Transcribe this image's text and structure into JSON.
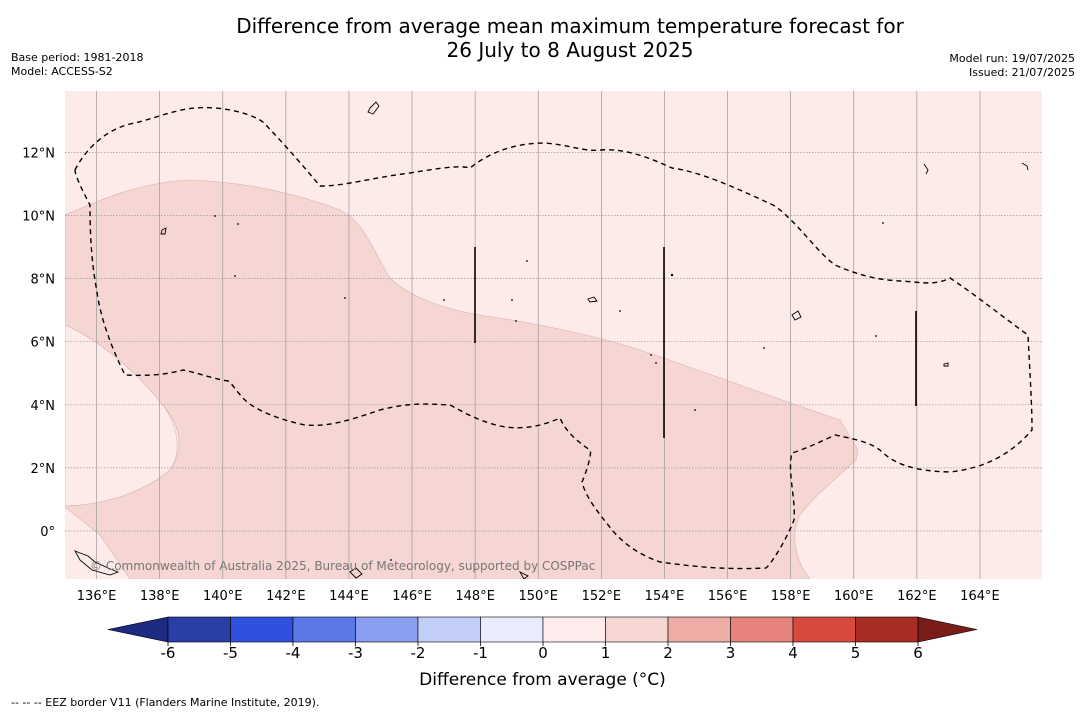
{
  "title_line1": "Difference from average mean maximum temperature forecast for",
  "title_line2": "26 July to 8 August 2025",
  "base_period": "Base period: 1981-2018",
  "model": "Model: ACCESS-S2",
  "model_run": "Model run: 19/07/2025",
  "issued": "Issued: 21/07/2025",
  "credit": "© Commonwealth of Australia 2025, Bureau of Meteorology, supported by COSPPac",
  "lat_labels": [
    "12°N",
    "10°N",
    "8°N",
    "6°N",
    "4°N",
    "2°N",
    "0°"
  ],
  "lon_labels": [
    "136°E",
    "138°E",
    "140°E",
    "142°E",
    "144°E",
    "146°E",
    "148°E",
    "150°E",
    "152°E",
    "154°E",
    "156°E",
    "158°E",
    "160°E",
    "162°E",
    "164°E"
  ],
  "colorbar": {
    "ticks": [
      "-6",
      "-5",
      "-4",
      "-3",
      "-2",
      "-1",
      "0",
      "1",
      "2",
      "3",
      "4",
      "5",
      "6"
    ],
    "colors": [
      "#2a3ea8",
      "#3050e0",
      "#5a78e6",
      "#8a9ef0",
      "#c2cdf8",
      "#e8ecfd",
      "#fdeceb",
      "#f6d6d3",
      "#eeaca7",
      "#e6837c",
      "#d84a40",
      "#a82d25"
    ],
    "low_extend_color": "#1c2a80",
    "high_extend_color": "#7a1c18",
    "label": "Difference from average (°C)"
  },
  "map_data": {
    "lon_range": [
      135,
      166
    ],
    "lat_range": [
      -1.5,
      14
    ],
    "anomaly_classes_present": [
      "0 to 1",
      "1 to 2"
    ],
    "colors": {
      "class_0_1": "#fcebe9",
      "class_1_2": "#f5d6d3"
    }
  },
  "footnote": "-- -- -- EEZ border V11 (Flanders Marine Institute, 2019)."
}
